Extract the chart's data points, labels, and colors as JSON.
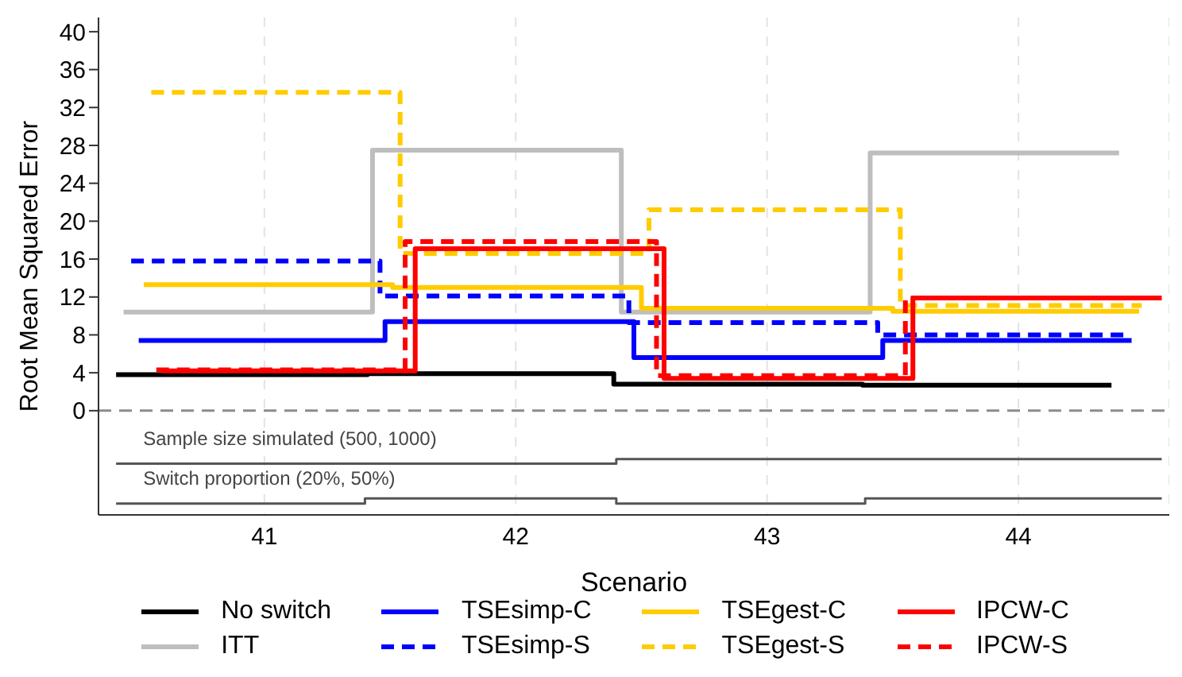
{
  "chart_data": {
    "type": "step",
    "xlabel": "Scenario",
    "ylabel": "Root Mean Squared Error",
    "xlim": [
      40.34,
      44.6
    ],
    "xticks": [
      41,
      42,
      43,
      44
    ],
    "ylim": [
      -11,
      41.5
    ],
    "yticks": [
      0,
      4,
      8,
      12,
      16,
      20,
      24,
      28,
      32,
      36,
      40
    ],
    "grid": "x",
    "legend": "bottom",
    "marker": "none",
    "line_style": "solid",
    "ref_lines": [
      {
        "axis": "y",
        "value": 0,
        "color": "#8c8c8c",
        "line_style": "dashed"
      }
    ],
    "annotations": [
      "Sample size simulated (500, 1000)",
      "Switch proportion (20%, 50%)"
    ],
    "series": [
      {
        "name": "No switch",
        "color": "#000000",
        "x": [
          40.41,
          41.41,
          42.39,
          43.38,
          44.37
        ],
        "values": [
          3.8,
          3.9,
          2.8,
          2.7,
          2.7
        ]
      },
      {
        "name": "ITT",
        "color": "#bebebe",
        "x": [
          40.44,
          41.43,
          42.42,
          43.41,
          44.4
        ],
        "values": [
          10.4,
          27.5,
          10.4,
          27.2,
          27.2
        ]
      },
      {
        "name": "TSEsimp-C",
        "color": "#0000ff",
        "x": [
          40.5,
          41.48,
          42.47,
          43.46,
          44.45
        ],
        "values": [
          7.4,
          9.4,
          5.6,
          7.4,
          7.4
        ]
      },
      {
        "name": "TSEsimp-S",
        "color": "#0000ff",
        "line_style": "dashed",
        "x": [
          40.47,
          41.46,
          42.45,
          43.44,
          44.43
        ],
        "values": [
          15.8,
          12.1,
          9.3,
          8.0,
          8.0
        ]
      },
      {
        "name": "TSEgest-C",
        "color": "#ffcc00",
        "x": [
          40.52,
          41.51,
          42.5,
          43.5,
          44.48
        ],
        "values": [
          13.3,
          13,
          10.8,
          10.5,
          10.5
        ]
      },
      {
        "name": "TSEgest-S",
        "color": "#ffcc00",
        "line_style": "dashed",
        "x": [
          40.55,
          41.54,
          42.53,
          43.53,
          44.49
        ],
        "values": [
          33.6,
          16.6,
          21.2,
          11.1,
          11.1
        ]
      },
      {
        "name": "IPCW-C",
        "color": "#ff0000",
        "x": [
          40.59,
          41.6,
          42.59,
          43.58,
          44.56
        ],
        "values": [
          4.2,
          17.1,
          3.4,
          11.9,
          11.9
        ]
      },
      {
        "name": "IPCW-S",
        "color": "#ff0000",
        "line_style": "dashed",
        "x": [
          40.57,
          41.56,
          42.56,
          43.55,
          44.57
        ],
        "values": [
          4.3,
          17.85,
          3.7,
          11.9,
          11.9
        ]
      },
      {
        "color": "#555555",
        "x": [
          40.41,
          42.4,
          44.57
        ],
        "values": [
          -5.6,
          -5.1,
          -5.1
        ]
      },
      {
        "color": "#555555",
        "x": [
          40.41,
          41.4,
          42.4,
          43.39,
          44.57
        ],
        "values": [
          -9.8,
          -9.25,
          -9.8,
          -9.25,
          -9.25
        ]
      }
    ]
  }
}
